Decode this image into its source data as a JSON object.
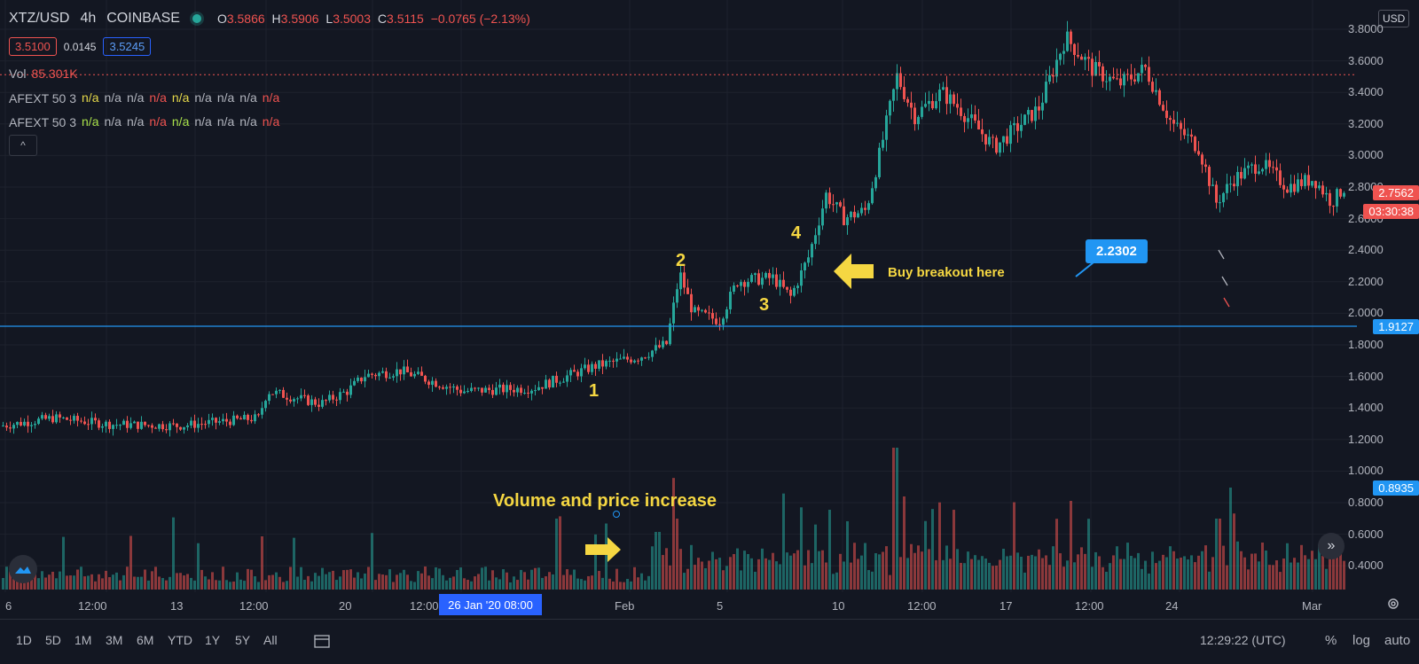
{
  "legend": {
    "symbol": "XTZ/USD",
    "interval": "4h",
    "exchange": "COINBASE",
    "ohlc": {
      "o_label": "O",
      "o": "3.5866",
      "h_label": "H",
      "h": "3.5906",
      "l_label": "L",
      "l": "3.5003",
      "c_label": "C",
      "c": "3.5115",
      "change": "−0.0765 (−2.13%)"
    },
    "bid": "3.5100",
    "spread": "0.0145",
    "ask": "3.5245",
    "volume_label": "Vol",
    "volume_value": "85.301K",
    "indicators": [
      {
        "name": "AFEXT 50 3",
        "values": [
          "n/a",
          "n/a",
          "n/a",
          "n/a",
          "n/a",
          "n/a",
          "n/a",
          "n/a",
          "n/a"
        ],
        "colors": [
          "#e6d94a",
          "#b2b5be",
          "#b2b5be",
          "#ef5350",
          "#e6d94a",
          "#b2b5be",
          "#b2b5be",
          "#b2b5be",
          "#ef5350"
        ]
      },
      {
        "name": "AFEXT 50 3",
        "values": [
          "n/a",
          "n/a",
          "n/a",
          "n/a",
          "n/a",
          "n/a",
          "n/a",
          "n/a",
          "n/a"
        ],
        "colors": [
          "#a8e04a",
          "#b2b5be",
          "#b2b5be",
          "#ef5350",
          "#a8e04a",
          "#b2b5be",
          "#b2b5be",
          "#b2b5be",
          "#ef5350"
        ]
      }
    ],
    "collapse_glyph": "^"
  },
  "price_scale": {
    "currency": "USD",
    "ticks": [
      "3.8000",
      "3.6000",
      "3.4000",
      "3.2000",
      "3.0000",
      "2.8000",
      "2.6000",
      "2.4000",
      "2.2000",
      "2.0000",
      "1.8000",
      "1.6000",
      "1.4000",
      "1.2000",
      "1.0000",
      "0.8000",
      "0.6000",
      "0.4000"
    ],
    "last_price": "2.7562",
    "countdown": "03:30:38",
    "horizontal_line_price": "1.9127",
    "volume_marker": "0.8935",
    "colors": {
      "last": "#ef5350",
      "line": "#2196f3"
    }
  },
  "time_axis": {
    "labels": [
      "6",
      "12:00",
      "13",
      "12:00",
      "20",
      "12:00",
      "Feb",
      "5",
      "10",
      "12:00",
      "17",
      "12:00",
      "24",
      "Mar"
    ],
    "crosshair_label": "26 Jan '20   08:00"
  },
  "annotations": {
    "wave_labels": [
      "1",
      "2",
      "3",
      "4"
    ],
    "breakout_text": "Buy breakout here",
    "volume_text": "Volume and price increase",
    "note_value": "2.2302"
  },
  "toolbar": {
    "ranges": [
      "1D",
      "5D",
      "1M",
      "3M",
      "6M",
      "YTD",
      "1Y",
      "5Y",
      "All"
    ],
    "clock": "12:29:22 (UTC)",
    "percent": "%",
    "log": "log",
    "auto": "auto"
  },
  "chart_data": {
    "type": "candlestick",
    "title": "XTZ/USD",
    "x": [
      "6",
      "13",
      "20",
      "26 Jan",
      "Feb",
      "5",
      "10",
      "17",
      "24",
      "Mar"
    ],
    "price_close_approx": [
      1.3,
      1.32,
      1.6,
      1.52,
      1.72,
      2.1,
      2.7,
      3.35,
      3.05,
      2.76
    ],
    "price_range": [
      0.2,
      3.9
    ],
    "volume_spikes": [
      0.62,
      0.72,
      1.17,
      0.9
    ],
    "horizontal_line": 1.9127,
    "last_price": 2.7562,
    "grid": true
  }
}
